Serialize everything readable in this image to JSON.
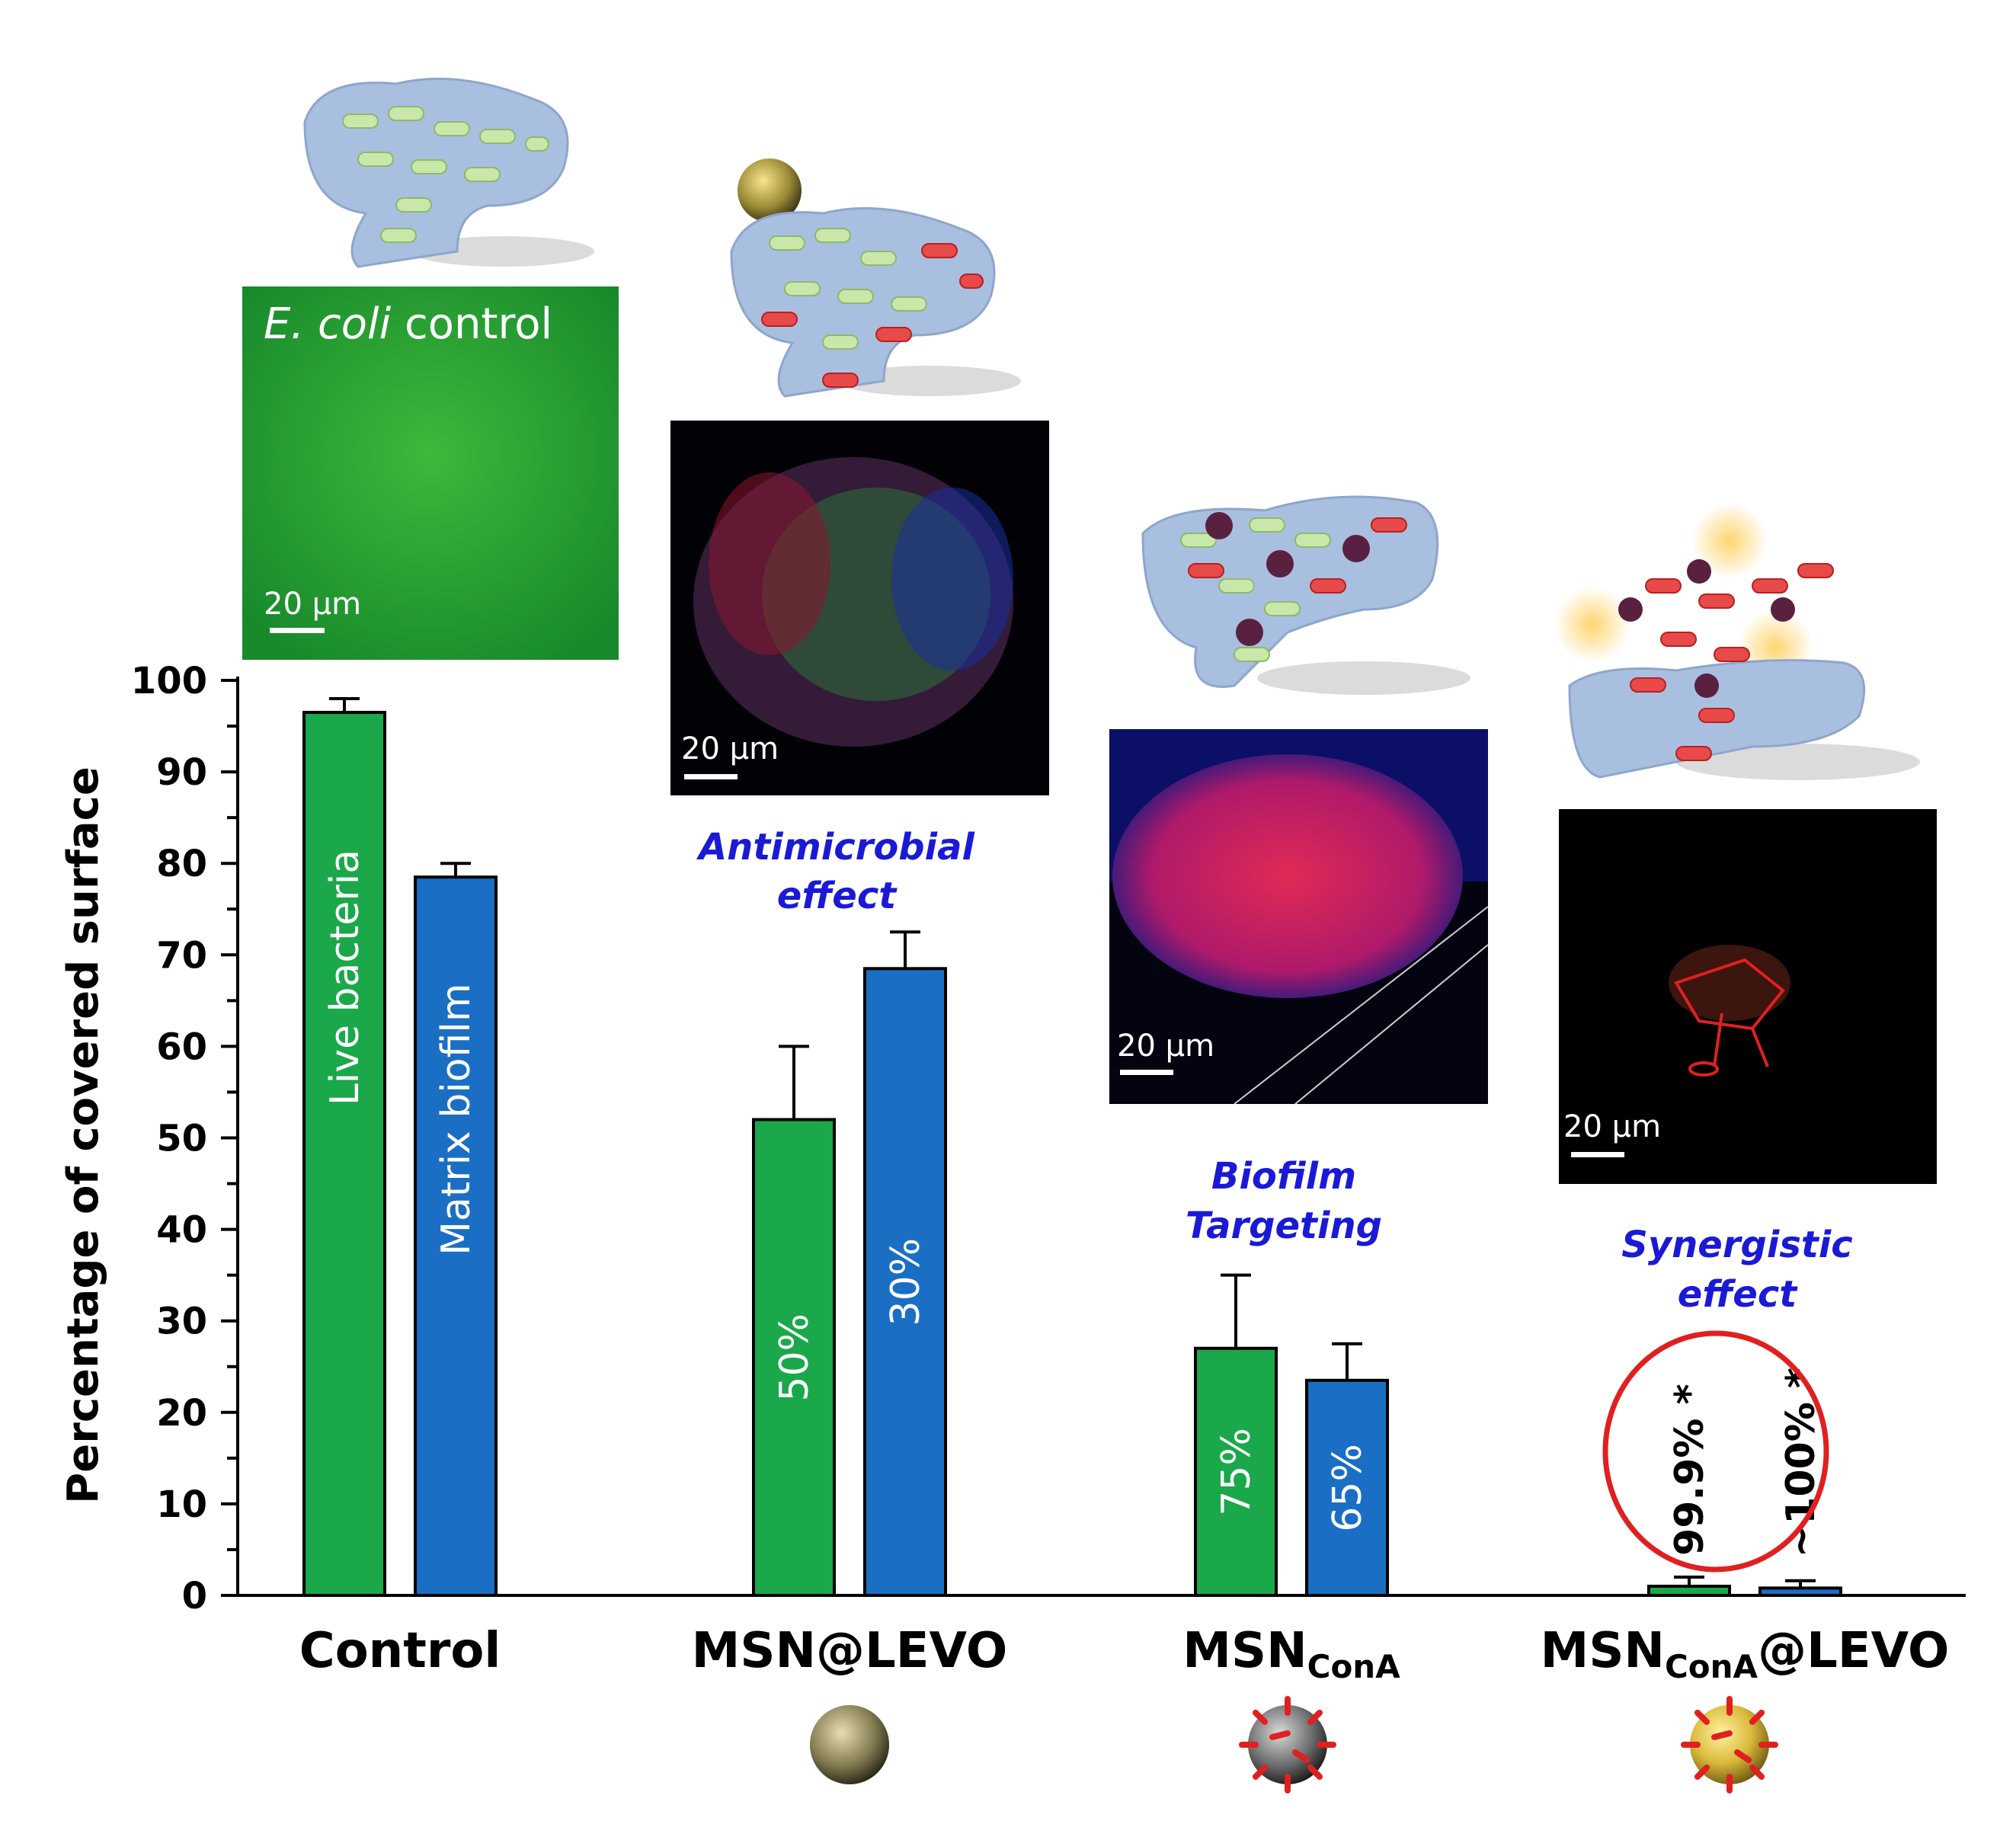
{
  "chart_data": {
    "type": "bar",
    "ylabel": "Percentage of covered surface",
    "ylim": [
      0,
      100
    ],
    "yticks": [
      "0",
      "10",
      "20",
      "30",
      "40",
      "50",
      "60",
      "70",
      "80",
      "90",
      "100"
    ],
    "categories": [
      "Control",
      "MSN@LEVO",
      "MSNConA",
      "MSNConA@LEVO"
    ],
    "category_parts": [
      {
        "main": "Control",
        "sub": "",
        "tail": ""
      },
      {
        "main": "MSN@LEVO",
        "sub": "",
        "tail": ""
      },
      {
        "main": "MSN",
        "sub": "ConA",
        "tail": ""
      },
      {
        "main": "MSN",
        "sub": "ConA",
        "tail": "@LEVO"
      }
    ],
    "series": [
      {
        "name": "Live bacteria",
        "color": "#1aa84a",
        "values": [
          96.5,
          52,
          27,
          1
        ],
        "errors": [
          1.5,
          8,
          8,
          1
        ]
      },
      {
        "name": "Matrix biofilm",
        "color": "#1a6fc4",
        "values": [
          78.5,
          68.5,
          23.5,
          0.8
        ],
        "errors": [
          1.5,
          4,
          4,
          0.8
        ]
      }
    ],
    "bar_labels": [
      [
        "Live bacteria",
        "Matrix biofilm"
      ],
      [
        "50%",
        "30%"
      ],
      [
        "75%",
        "65%"
      ],
      [
        "99.9% *",
        "~100% *"
      ]
    ],
    "annotations": [
      {
        "lines": [
          "Antimicrobial",
          "effect"
        ],
        "color": "#1a1ad6"
      },
      {
        "lines": [
          "Biofilm",
          "Targeting"
        ],
        "color": "#1a1ad6"
      },
      {
        "lines": [
          "Synergistic",
          "effect"
        ],
        "color": "#1a1ad6"
      }
    ],
    "highlight_circle": {
      "color": "#e02020",
      "group": "MSNConA@LEVO"
    },
    "micrographs": [
      {
        "caption_italic": "E. coli",
        "caption": " control",
        "scale": "20 μm"
      },
      {
        "caption_italic": "",
        "caption": "",
        "scale": "20 μm"
      },
      {
        "caption_italic": "",
        "caption": "",
        "scale": "20 μm"
      },
      {
        "caption_italic": "",
        "caption": "",
        "scale": "20 μm"
      }
    ]
  }
}
